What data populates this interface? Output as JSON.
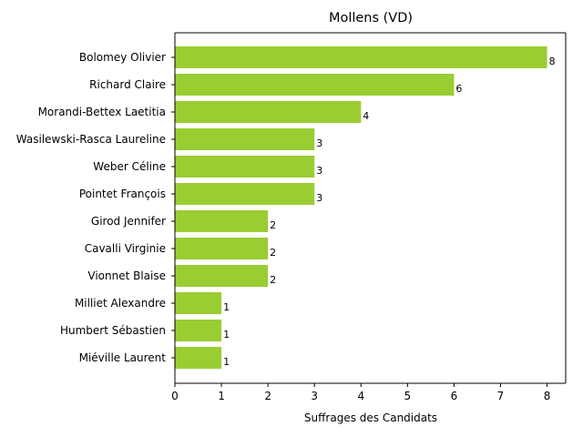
{
  "chart_data": {
    "type": "bar",
    "orientation": "horizontal",
    "title": "Mollens (VD)",
    "xlabel": "Suffrages des Candidats",
    "ylabel": "",
    "xlim": [
      0,
      8.4
    ],
    "xticks": [
      0,
      1,
      2,
      3,
      4,
      5,
      6,
      7,
      8
    ],
    "grid": false,
    "bar_color": "#9acd32",
    "categories": [
      "Bolomey Olivier",
      "Richard Claire",
      "Morandi-Bettex Laetitia",
      "Wasilewski-Rasca Laureline",
      "Weber Céline",
      "Pointet François",
      "Girod Jennifer",
      "Cavalli Virginie",
      "Vionnet Blaise",
      "Milliet Alexandre",
      "Humbert Sébastien",
      "Miéville Laurent"
    ],
    "values": [
      8,
      6,
      4,
      3,
      3,
      3,
      2,
      2,
      2,
      1,
      1,
      1
    ]
  }
}
